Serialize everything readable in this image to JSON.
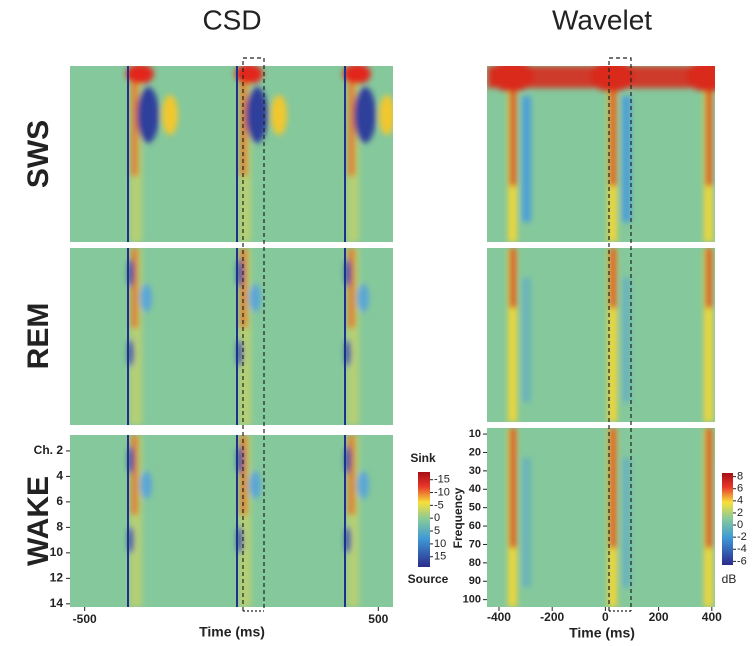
{
  "rows": [
    "SWS",
    "REM",
    "WAKE"
  ],
  "csd": {
    "title": "CSD",
    "x_label": "Time (ms)",
    "xlim": [
      -550,
      550
    ],
    "xticks": [
      -500,
      500
    ],
    "ylim": [
      0.75,
      14.25
    ],
    "yticks": [
      {
        "value": 2,
        "label": "Ch. 2"
      },
      4,
      6,
      8,
      10,
      12,
      14
    ],
    "colorbar": {
      "top_label": "Sink",
      "bottom_label": "Source",
      "lim": [
        -18,
        19
      ],
      "ticks": [
        -15,
        -10,
        -5,
        0,
        5,
        10,
        15
      ]
    }
  },
  "wavelet": {
    "title": "Wavelet",
    "x_label": "Time (ms)",
    "y_label": "Frequency",
    "xlim": [
      -445,
      412
    ],
    "xticks": [
      -400,
      -200,
      0,
      200,
      400
    ],
    "ylim": [
      6.7,
      104
    ],
    "yticks": [
      10,
      20,
      30,
      40,
      50,
      60,
      70,
      80,
      90,
      100
    ],
    "colorbar": {
      "unit": "dB",
      "lim": [
        -6.6,
        8.6
      ],
      "ticks": [
        8,
        6,
        4,
        2,
        0,
        -2,
        -4,
        -6
      ]
    }
  }
}
